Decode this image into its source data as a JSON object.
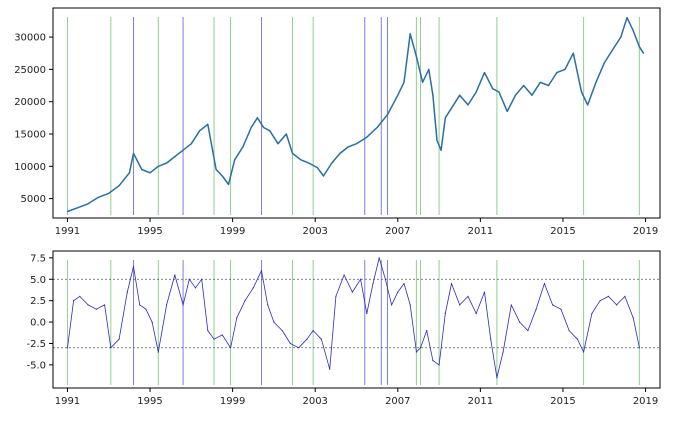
{
  "chart_data": [
    {
      "type": "line",
      "title": "",
      "xlabel": "",
      "ylabel": "",
      "xlim": [
        1990.3,
        2019.7
      ],
      "ylim": [
        2000,
        34500
      ],
      "x_ticks": [
        "1991",
        "1995",
        "1999",
        "2003",
        "2007",
        "2011",
        "2015",
        "2019"
      ],
      "y_ticks": [
        "5000",
        "10000",
        "15000",
        "20000",
        "25000",
        "30000"
      ],
      "series": [
        {
          "color": "#2a6f9e",
          "x": [
            1991.0,
            1991.5,
            1992.0,
            1992.5,
            1993.0,
            1993.5,
            1994.0,
            1994.2,
            1994.6,
            1995.0,
            1995.4,
            1995.8,
            1996.2,
            1996.6,
            1997.0,
            1997.4,
            1997.8,
            1998.2,
            1998.5,
            1998.8,
            1999.1,
            1999.5,
            1999.9,
            2000.2,
            2000.5,
            2000.8,
            2001.2,
            2001.6,
            2001.9,
            2002.3,
            2002.7,
            2003.1,
            2003.4,
            2003.8,
            2004.2,
            2004.6,
            2005.0,
            2005.5,
            2006.0,
            2006.5,
            2007.0,
            2007.3,
            2007.6,
            2007.9,
            2008.2,
            2008.5,
            2008.7,
            2008.9,
            2009.1,
            2009.3,
            2009.6,
            2010.0,
            2010.4,
            2010.8,
            2011.2,
            2011.6,
            2011.9,
            2012.3,
            2012.7,
            2013.1,
            2013.5,
            2013.9,
            2014.3,
            2014.7,
            2015.1,
            2015.5,
            2015.9,
            2016.2,
            2016.6,
            2017.0,
            2017.4,
            2017.8,
            2018.1,
            2018.4,
            2018.7,
            2018.9
          ],
          "y": [
            3000,
            3600,
            4200,
            5200,
            5800,
            7000,
            9000,
            12000,
            9500,
            9000,
            10000,
            10500,
            11500,
            12500,
            13500,
            15500,
            16500,
            9500,
            8500,
            7200,
            11000,
            13000,
            16000,
            17500,
            16000,
            15500,
            13500,
            15000,
            12000,
            11000,
            10500,
            9800,
            8500,
            10500,
            12000,
            13000,
            13500,
            14500,
            16000,
            18000,
            21000,
            23000,
            30500,
            27000,
            23000,
            25000,
            21000,
            14000,
            12500,
            17500,
            19000,
            21000,
            19500,
            21500,
            24500,
            22000,
            21500,
            18500,
            21000,
            22500,
            21000,
            23000,
            22500,
            24500,
            25000,
            27500,
            21500,
            19500,
            23000,
            26000,
            28000,
            30000,
            33000,
            31000,
            28500,
            27500
          ]
        }
      ],
      "vlines_green": [
        1991.0,
        1993.1,
        1995.4,
        1998.1,
        1998.9,
        2001.9,
        2002.9,
        2007.9,
        2008.1,
        2009.0,
        2011.8,
        2016.0,
        2018.7
      ],
      "vlines_blue": [
        1994.2,
        1996.6,
        2000.4,
        2005.4,
        2006.2,
        2006.5
      ]
    },
    {
      "type": "line",
      "title": "",
      "xlabel": "",
      "ylabel": "",
      "xlim": [
        1990.3,
        2019.7
      ],
      "ylim": [
        -7.7,
        8.3
      ],
      "x_ticks": [
        "1991",
        "1995",
        "1999",
        "2003",
        "2007",
        "2011",
        "2015",
        "2019"
      ],
      "y_ticks": [
        "-5.0",
        "-2.5",
        "0.0",
        "2.5",
        "5.0",
        "7.5"
      ],
      "hlines": [
        5.0,
        -3.0
      ],
      "series": [
        {
          "color": "#2b2bbd",
          "x": [
            1991.0,
            1991.3,
            1991.6,
            1992.0,
            1992.4,
            1992.8,
            1993.1,
            1993.5,
            1993.9,
            1994.2,
            1994.5,
            1994.8,
            1995.1,
            1995.4,
            1995.8,
            1996.2,
            1996.6,
            1996.9,
            1997.2,
            1997.5,
            1997.8,
            1998.1,
            1998.5,
            1998.9,
            1999.2,
            1999.6,
            2000.0,
            2000.4,
            2000.7,
            2001.0,
            2001.4,
            2001.8,
            2002.2,
            2002.6,
            2002.9,
            2003.3,
            2003.7,
            2004.0,
            2004.4,
            2004.8,
            2005.2,
            2005.5,
            2005.8,
            2006.1,
            2006.4,
            2006.7,
            2007.0,
            2007.3,
            2007.6,
            2007.9,
            2008.1,
            2008.4,
            2008.7,
            2009.0,
            2009.3,
            2009.6,
            2010.0,
            2010.4,
            2010.8,
            2011.2,
            2011.5,
            2011.8,
            2012.1,
            2012.5,
            2012.9,
            2013.3,
            2013.7,
            2014.1,
            2014.5,
            2014.9,
            2015.3,
            2015.7,
            2016.0,
            2016.4,
            2016.8,
            2017.2,
            2017.6,
            2018.0,
            2018.4,
            2018.7
          ],
          "y": [
            -3.0,
            2.5,
            3.0,
            2.0,
            1.5,
            2.0,
            -3.0,
            -2.0,
            3.5,
            6.5,
            2.0,
            1.5,
            0.0,
            -3.5,
            2.0,
            5.5,
            2.0,
            5.0,
            4.0,
            5.0,
            -1.0,
            -2.0,
            -1.5,
            -3.0,
            0.5,
            2.5,
            4.0,
            6.0,
            2.0,
            0.0,
            -1.0,
            -2.5,
            -3.0,
            -2.0,
            -1.0,
            -2.0,
            -5.5,
            3.0,
            5.5,
            3.5,
            5.0,
            1.0,
            4.5,
            7.5,
            5.0,
            2.0,
            3.5,
            4.5,
            2.0,
            -3.5,
            -3.0,
            -1.0,
            -4.5,
            -5.0,
            1.0,
            4.5,
            2.0,
            3.0,
            1.0,
            3.5,
            -2.0,
            -6.5,
            -3.5,
            2.0,
            0.0,
            -1.0,
            1.5,
            4.5,
            2.0,
            1.5,
            -1.0,
            -2.0,
            -3.5,
            1.0,
            2.5,
            3.0,
            2.0,
            3.0,
            0.5,
            -3.0
          ]
        }
      ],
      "vlines_green": [
        1991.0,
        1993.1,
        1995.4,
        1998.1,
        1998.9,
        2001.9,
        2002.9,
        2007.9,
        2008.1,
        2009.0,
        2011.8,
        2016.0,
        2018.7
      ],
      "vlines_blue": [
        1994.2,
        1996.6,
        2000.4,
        2005.4,
        2006.2,
        2006.5
      ]
    }
  ]
}
